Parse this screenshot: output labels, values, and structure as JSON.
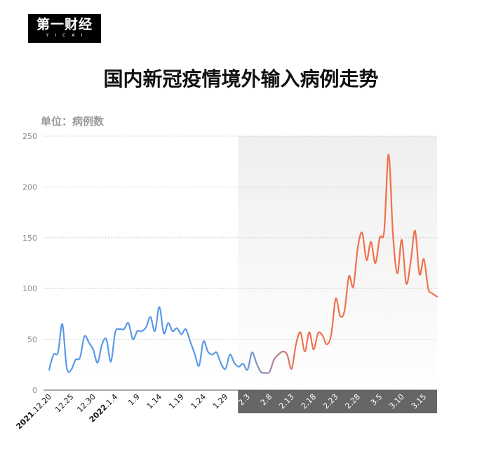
{
  "brand": {
    "logo_text": "第一财经",
    "logo_sub": "YICAI"
  },
  "title": "国内新冠疫情境外输入病例走势",
  "unit_label": "单位：病例数",
  "colors": {
    "blue": "#5b9ae6",
    "red": "#f0714e",
    "purple": "#9a88b0",
    "grid": "#b8b8b8",
    "shade_top": "#ededed",
    "shade_bottom": "#666666"
  },
  "chart_data": {
    "type": "line",
    "title": "国内新冠疫情境外输入病例走势",
    "ylabel": "单位：病例数",
    "xlabel": "",
    "ylim": [
      0,
      250
    ],
    "yticks": [
      0,
      50,
      100,
      150,
      200,
      250
    ],
    "grid": true,
    "highlight_start": "2.1",
    "xtick_labels": [
      {
        "date": "12.20",
        "year": "2021"
      },
      {
        "date": "12.25"
      },
      {
        "date": "12.30"
      },
      {
        "date": "1.4",
        "year": "2022"
      },
      {
        "date": "1.9"
      },
      {
        "date": "1.14"
      },
      {
        "date": "1.19"
      },
      {
        "date": "1.24"
      },
      {
        "date": "1.29"
      },
      {
        "date": "2.3"
      },
      {
        "date": "2.8"
      },
      {
        "date": "2.13"
      },
      {
        "date": "2.18"
      },
      {
        "date": "2.23"
      },
      {
        "date": "2.28"
      },
      {
        "date": "3.5"
      },
      {
        "date": "3.10"
      },
      {
        "date": "3.15"
      }
    ],
    "series": [
      {
        "values": [
          {
            "x": "12.20",
            "y": 20
          },
          {
            "x": "12.21",
            "y": 35
          },
          {
            "x": "12.22",
            "y": 37
          },
          {
            "x": "12.23",
            "y": 65
          },
          {
            "x": "12.24",
            "y": 22
          },
          {
            "x": "12.25",
            "y": 20
          },
          {
            "x": "12.26",
            "y": 30
          },
          {
            "x": "12.27",
            "y": 32
          },
          {
            "x": "12.28",
            "y": 53
          },
          {
            "x": "12.29",
            "y": 47
          },
          {
            "x": "12.30",
            "y": 40
          },
          {
            "x": "12.31",
            "y": 27
          },
          {
            "x": "1.1",
            "y": 45
          },
          {
            "x": "1.2",
            "y": 50
          },
          {
            "x": "1.3",
            "y": 28
          },
          {
            "x": "1.4",
            "y": 57
          },
          {
            "x": "1.5",
            "y": 60
          },
          {
            "x": "1.6",
            "y": 60
          },
          {
            "x": "1.7",
            "y": 66
          },
          {
            "x": "1.8",
            "y": 50
          },
          {
            "x": "1.9",
            "y": 58
          },
          {
            "x": "1.10",
            "y": 58
          },
          {
            "x": "1.11",
            "y": 62
          },
          {
            "x": "1.12",
            "y": 72
          },
          {
            "x": "1.13",
            "y": 58
          },
          {
            "x": "1.14",
            "y": 82
          },
          {
            "x": "1.15",
            "y": 56
          },
          {
            "x": "1.16",
            "y": 66
          },
          {
            "x": "1.17",
            "y": 58
          },
          {
            "x": "1.18",
            "y": 61
          },
          {
            "x": "1.19",
            "y": 55
          },
          {
            "x": "1.20",
            "y": 60
          },
          {
            "x": "1.21",
            "y": 48
          },
          {
            "x": "1.22",
            "y": 36
          },
          {
            "x": "1.23",
            "y": 24
          },
          {
            "x": "1.24",
            "y": 48
          },
          {
            "x": "1.25",
            "y": 38
          },
          {
            "x": "1.26",
            "y": 35
          },
          {
            "x": "1.27",
            "y": 37
          },
          {
            "x": "1.28",
            "y": 26
          },
          {
            "x": "1.29",
            "y": 21
          },
          {
            "x": "1.30",
            "y": 35
          },
          {
            "x": "1.31",
            "y": 27
          },
          {
            "x": "2.1",
            "y": 23
          },
          {
            "x": "2.2",
            "y": 26
          },
          {
            "x": "2.3",
            "y": 20
          },
          {
            "x": "2.4",
            "y": 37
          },
          {
            "x": "2.5",
            "y": 27
          },
          {
            "x": "2.6",
            "y": 18
          },
          {
            "x": "2.7",
            "y": 17
          },
          {
            "x": "2.8",
            "y": 18
          },
          {
            "x": "2.9",
            "y": 30
          },
          {
            "x": "2.10",
            "y": 35
          },
          {
            "x": "2.11",
            "y": 38
          },
          {
            "x": "2.12",
            "y": 35
          },
          {
            "x": "2.13",
            "y": 21
          },
          {
            "x": "2.14",
            "y": 45
          },
          {
            "x": "2.15",
            "y": 57
          },
          {
            "x": "2.16",
            "y": 38
          },
          {
            "x": "2.17",
            "y": 57
          },
          {
            "x": "2.18",
            "y": 40
          },
          {
            "x": "2.19",
            "y": 56
          },
          {
            "x": "2.20",
            "y": 54
          },
          {
            "x": "2.21",
            "y": 45
          },
          {
            "x": "2.22",
            "y": 55
          },
          {
            "x": "2.23",
            "y": 90
          },
          {
            "x": "2.24",
            "y": 73
          },
          {
            "x": "2.25",
            "y": 78
          },
          {
            "x": "2.26",
            "y": 112
          },
          {
            "x": "2.27",
            "y": 102
          },
          {
            "x": "2.28",
            "y": 140
          },
          {
            "x": "3.1",
            "y": 155
          },
          {
            "x": "3.2",
            "y": 128
          },
          {
            "x": "3.3",
            "y": 146
          },
          {
            "x": "3.4",
            "y": 125
          },
          {
            "x": "3.5",
            "y": 150
          },
          {
            "x": "3.6",
            "y": 157
          },
          {
            "x": "3.7",
            "y": 232
          },
          {
            "x": "3.8",
            "y": 152
          },
          {
            "x": "3.9",
            "y": 115
          },
          {
            "x": "3.10",
            "y": 148
          },
          {
            "x": "3.11",
            "y": 105
          },
          {
            "x": "3.12",
            "y": 126
          },
          {
            "x": "3.13",
            "y": 157
          },
          {
            "x": "3.14",
            "y": 114
          },
          {
            "x": "3.15",
            "y": 129
          },
          {
            "x": "3.16",
            "y": 100
          },
          {
            "x": "3.17",
            "y": 95
          },
          {
            "x": "3.18",
            "y": 92
          }
        ]
      }
    ]
  }
}
